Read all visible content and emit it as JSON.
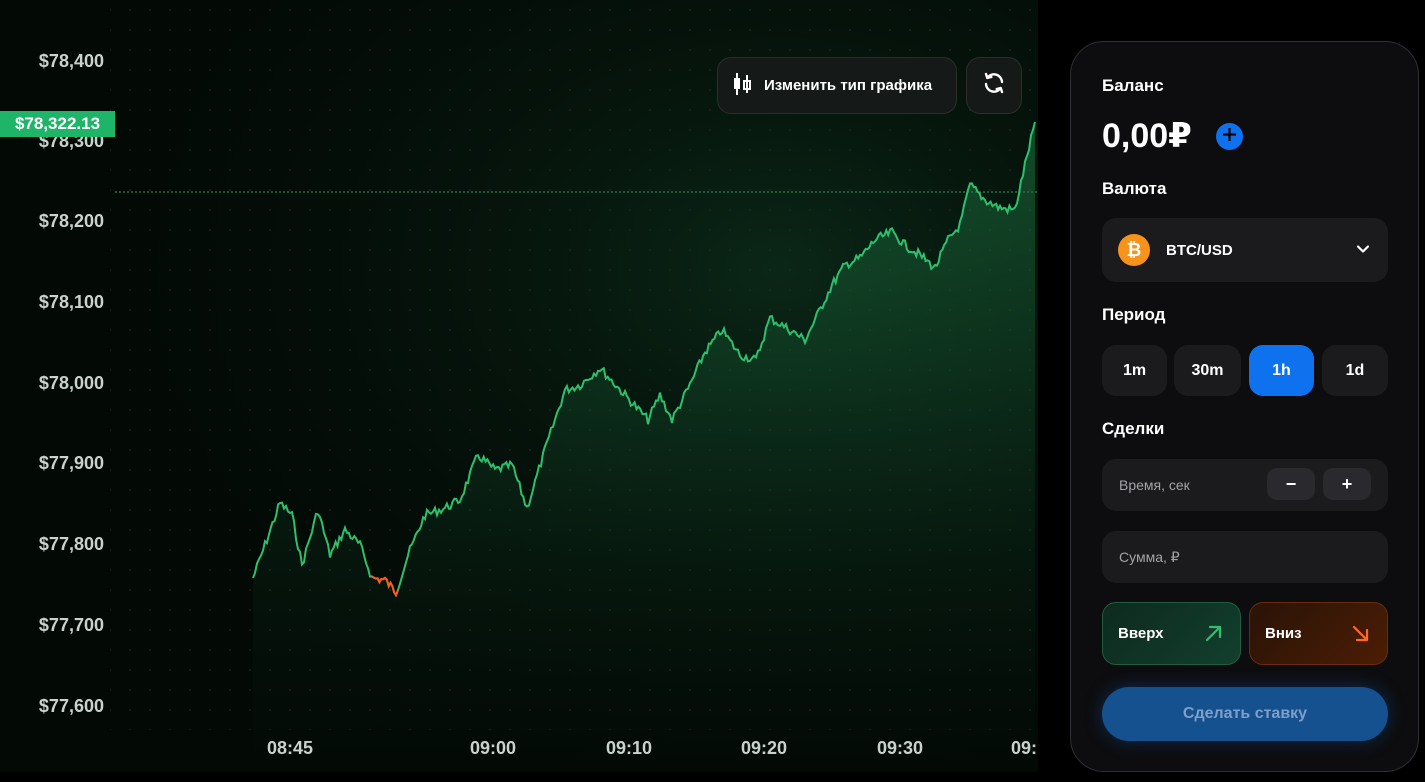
{
  "chart": {
    "y_ticks": [
      "$78,400",
      "$78,300",
      "$78,200",
      "$78,100",
      "$78,000",
      "$77,900",
      "$77,800",
      "$77,700",
      "$77,600"
    ],
    "x_ticks": [
      "08:45",
      "09:00",
      "09:10",
      "09:20",
      "09:30",
      "09:"
    ],
    "current_price": "$78,322.13",
    "line_color": "#2ec06d",
    "down_color": "#ff5a1f",
    "chart_type_label": "Изменить тип графика"
  },
  "panel": {
    "balance_label": "Баланс",
    "balance_value": "0,00₽",
    "currency_label": "Валюта",
    "currency_value": "BTC/USD",
    "currency_icon": "bitcoin-icon",
    "period_label": "Период",
    "periods": [
      "1m",
      "30m",
      "1h",
      "1d"
    ],
    "active_period": "1h",
    "deals_label": "Сделки",
    "time_placeholder": "Время, сек",
    "amount_placeholder": "Сумма, ₽",
    "minus": "−",
    "plus": "+",
    "up_label": "Вверх",
    "down_label": "Вниз",
    "bet_label": "Сделать ставку",
    "accent": "#0e72ef"
  }
}
